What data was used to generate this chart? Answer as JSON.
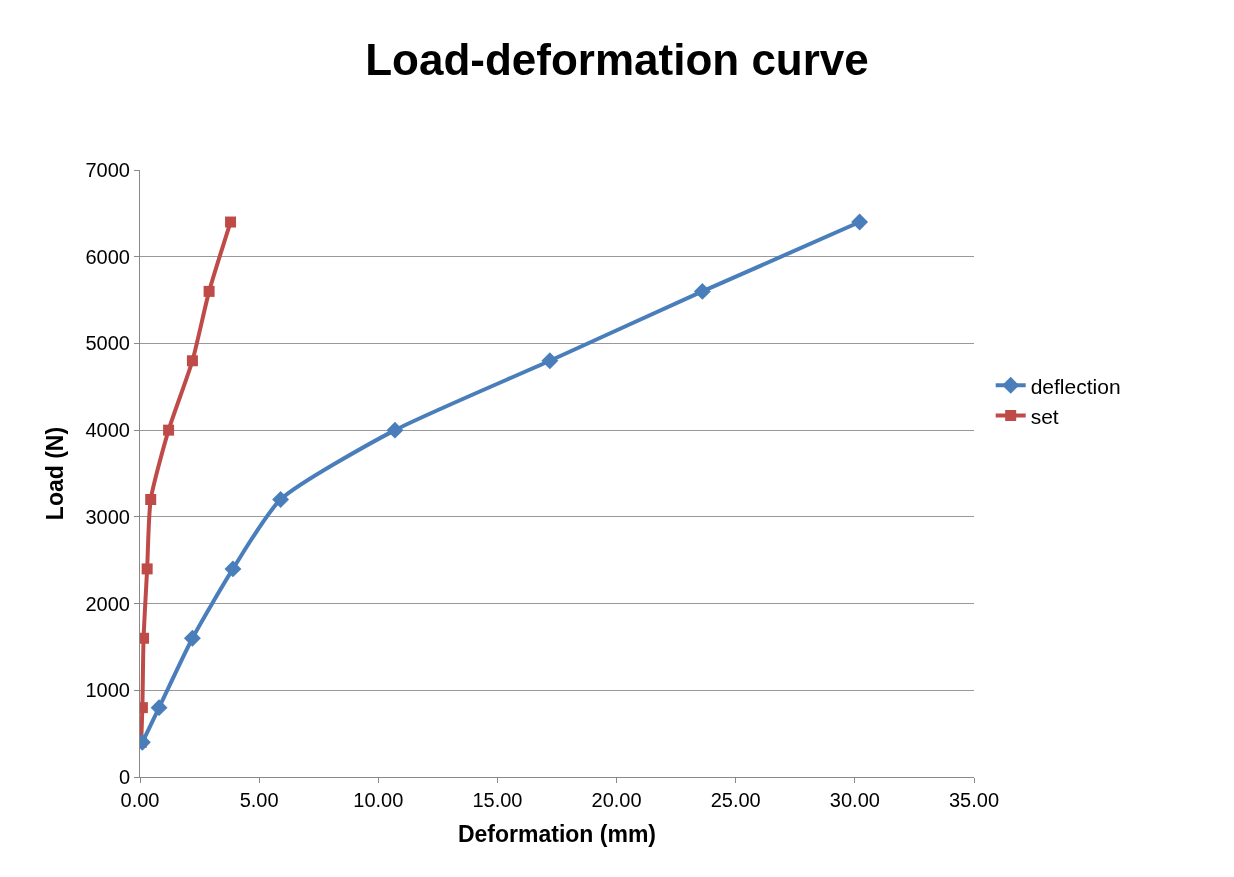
{
  "chart_data": {
    "type": "line",
    "title": "Load-deformation curve",
    "xlabel": "Deformation (mm)",
    "ylabel": "Load (N)",
    "xlim": [
      0,
      35
    ],
    "xticks": [
      {
        "value": 0,
        "label": "0.00"
      },
      {
        "value": 5,
        "label": "5.00"
      },
      {
        "value": 10,
        "label": "10.00"
      },
      {
        "value": 15,
        "label": "15.00"
      },
      {
        "value": 20,
        "label": "20.00"
      },
      {
        "value": 25,
        "label": "25.00"
      },
      {
        "value": 30,
        "label": "30.00"
      },
      {
        "value": 35,
        "label": "35.00"
      }
    ],
    "ylim": [
      0,
      7000
    ],
    "yticks": [
      0,
      1000,
      2000,
      3000,
      4000,
      5000,
      6000,
      7000
    ],
    "grid": "y",
    "legend": "right",
    "line_style": "solid",
    "series": [
      {
        "name": "deflection",
        "color": "#4a7ebb",
        "marker": "diamond",
        "x": [
          0.1,
          0.8,
          2.2,
          3.9,
          5.9,
          10.7,
          17.2,
          23.6,
          30.2
        ],
        "values": [
          400,
          800,
          1600,
          2400,
          3200,
          4000,
          4800,
          5600,
          6400
        ]
      },
      {
        "name": "set",
        "color": "#be4b48",
        "marker": "square",
        "x": [
          0.05,
          0.1,
          0.15,
          0.3,
          0.45,
          1.2,
          2.2,
          2.9,
          3.8
        ],
        "values": [
          400,
          800,
          1600,
          2400,
          3200,
          4000,
          4800,
          5600,
          6400
        ]
      }
    ]
  }
}
